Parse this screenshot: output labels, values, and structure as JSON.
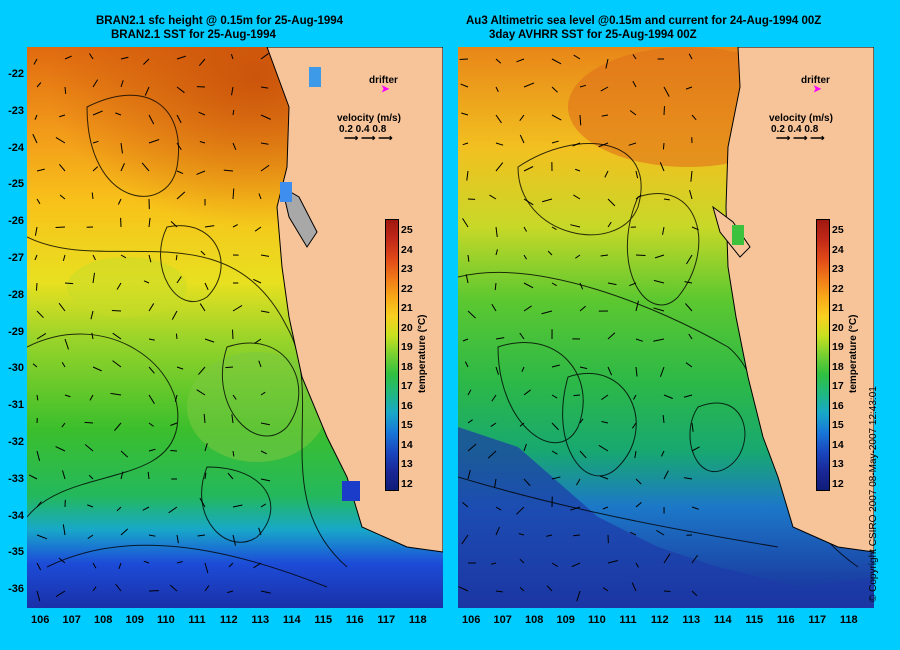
{
  "left_panel": {
    "title_line1": "BRAN2.1 sfc height @ 0.15m for 25-Aug-1994",
    "title_line2": "BRAN2.1 SST for 25-Aug-1994"
  },
  "right_panel": {
    "title_line1": "Au3 Altimetric sea level  @0.15m and current for 24-Aug-1994 00Z",
    "title_line2": "3day AVHRR SST for 25-Aug-1994 00Z"
  },
  "axes": {
    "x_ticks": [
      "106",
      "107",
      "108",
      "109",
      "110",
      "111",
      "112",
      "113",
      "114",
      "115",
      "116",
      "117",
      "118"
    ],
    "y_ticks": [
      "-22",
      "-23",
      "-24",
      "-25",
      "-26",
      "-27",
      "-28",
      "-29",
      "-30",
      "-31",
      "-32",
      "-33",
      "-34",
      "-35",
      "-36"
    ]
  },
  "legend": {
    "drifter_label": "drifter",
    "velocity_label": "velocity (m/s)",
    "velocity_values": "0.2 0.4 0.8"
  },
  "colorbar": {
    "title": "temperature (°C)",
    "labels": [
      "25",
      "24",
      "23",
      "22",
      "21",
      "20",
      "19",
      "18",
      "17",
      "16",
      "15",
      "14",
      "13",
      "12"
    ]
  },
  "copyright": "© Copyright CSIRO 2007    08-May-2007 12:43:01",
  "colors": {
    "background": "#00ccff",
    "land": "#f7c49a",
    "drifter": "#ff00ff"
  }
}
